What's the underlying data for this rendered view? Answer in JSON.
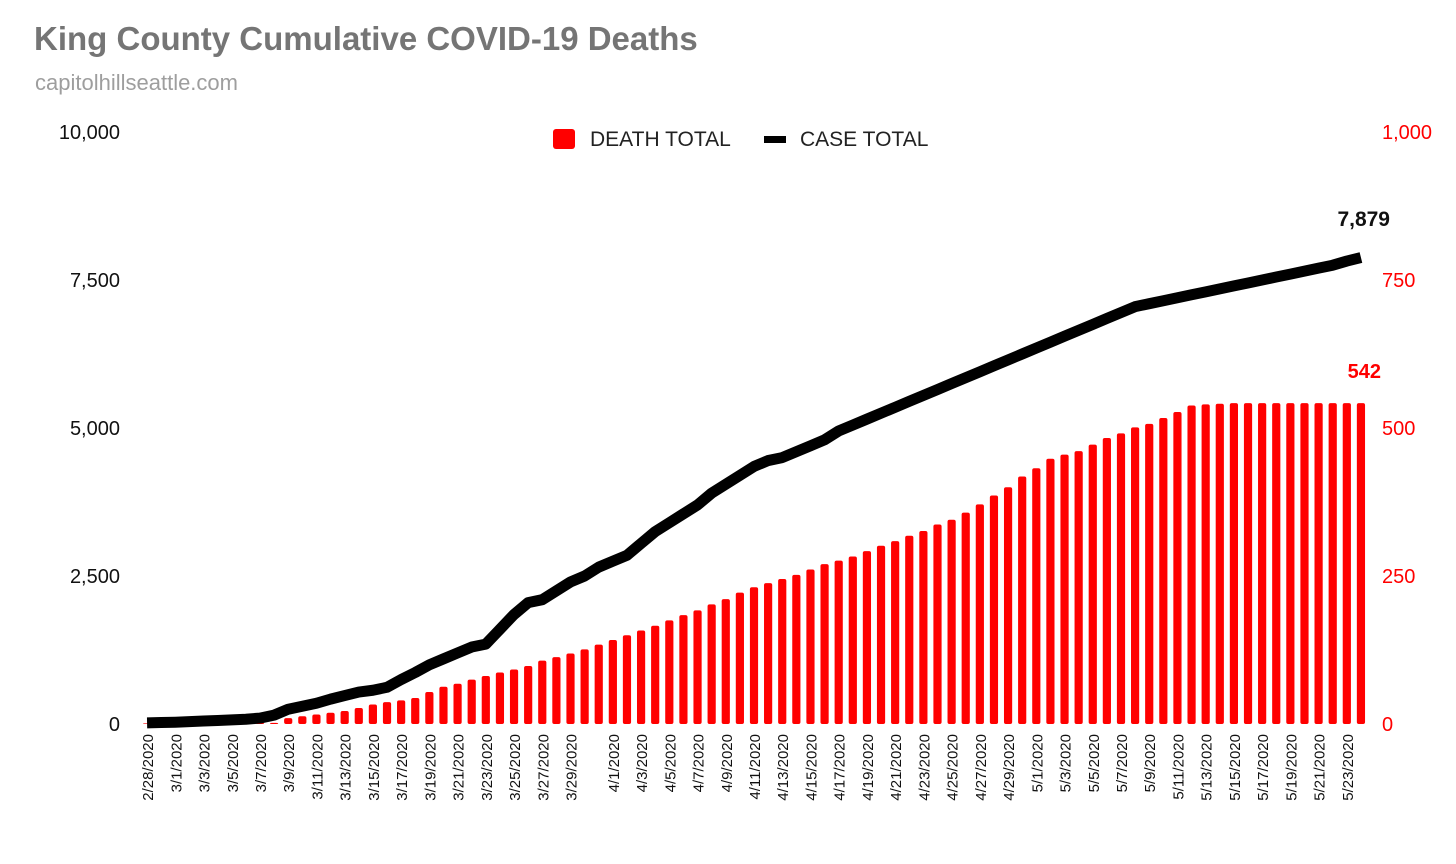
{
  "title": "King County Cumulative COVID-19 Deaths",
  "subtitle": "capitolhillseattle.com",
  "colors": {
    "deaths": "#ff0000",
    "cases": "#000000",
    "title": "#757575",
    "subtitle": "#9e9e9e"
  },
  "chart_data": {
    "type": "bar",
    "title": "King County Cumulative COVID-19 Deaths",
    "subtitle": "capitolhillseattle.com",
    "x": [
      "2/28/2020",
      "2/29/2020",
      "3/1/2020",
      "3/2/2020",
      "3/3/2020",
      "3/4/2020",
      "3/5/2020",
      "3/6/2020",
      "3/7/2020",
      "3/8/2020",
      "3/9/2020",
      "3/10/2020",
      "3/11/2020",
      "3/12/2020",
      "3/13/2020",
      "3/14/2020",
      "3/15/2020",
      "3/16/2020",
      "3/17/2020",
      "3/18/2020",
      "3/19/2020",
      "3/20/2020",
      "3/21/2020",
      "3/22/2020",
      "3/23/2020",
      "3/24/2020",
      "3/25/2020",
      "3/26/2020",
      "3/27/2020",
      "3/28/2020",
      "3/29/2020",
      "3/30/2020",
      "3/31/2020",
      "4/1/2020",
      "4/2/2020",
      "4/3/2020",
      "4/4/2020",
      "4/5/2020",
      "4/6/2020",
      "4/7/2020",
      "4/8/2020",
      "4/9/2020",
      "4/10/2020",
      "4/11/2020",
      "4/12/2020",
      "4/13/2020",
      "4/14/2020",
      "4/15/2020",
      "4/16/2020",
      "4/17/2020",
      "4/18/2020",
      "4/19/2020",
      "4/20/2020",
      "4/21/2020",
      "4/22/2020",
      "4/23/2020",
      "4/24/2020",
      "4/25/2020",
      "4/26/2020",
      "4/27/2020",
      "4/28/2020",
      "4/29/2020",
      "4/30/2020",
      "5/1/2020",
      "5/2/2020",
      "5/3/2020",
      "5/4/2020",
      "5/5/2020",
      "5/6/2020",
      "5/7/2020",
      "5/8/2020",
      "5/9/2020",
      "5/10/2020",
      "5/11/2020",
      "5/12/2020",
      "5/13/2020",
      "5/14/2020",
      "5/15/2020",
      "5/16/2020",
      "5/17/2020",
      "5/18/2020",
      "5/19/2020",
      "5/20/2020",
      "5/21/2020",
      "5/22/2020",
      "5/23/2020",
      "5/24/2020"
    ],
    "tick_labels": [
      "2/28/2020",
      "3/1/2020",
      "3/3/2020",
      "3/5/2020",
      "3/7/2020",
      "3/9/2020",
      "3/11/2020",
      "3/13/2020",
      "3/15/2020",
      "3/17/2020",
      "3/19/2020",
      "3/21/2020",
      "3/23/2020",
      "3/25/2020",
      "3/27/2020",
      "3/29/2020",
      "4/1/2020",
      "4/3/2020",
      "4/5/2020",
      "4/7/2020",
      "4/9/2020",
      "4/11/2020",
      "4/13/2020",
      "4/15/2020",
      "4/17/2020",
      "4/19/2020",
      "4/21/2020",
      "4/23/2020",
      "4/25/2020",
      "4/27/2020",
      "4/29/2020",
      "5/1/2020",
      "5/3/2020",
      "5/5/2020",
      "5/7/2020",
      "5/9/2020",
      "5/11/2020",
      "5/13/2020",
      "5/15/2020",
      "5/17/2020",
      "5/19/2020",
      "5/21/2020",
      "5/23/2020"
    ],
    "series": [
      {
        "name": "DEATH TOTAL",
        "axis": "right",
        "type": "bar",
        "color": "#ff0000",
        "values": [
          1,
          1,
          1,
          1,
          1,
          1,
          1,
          2,
          2,
          2,
          10,
          13,
          16,
          19,
          22,
          27,
          33,
          37,
          40,
          44,
          54,
          63,
          68,
          75,
          81,
          87,
          92,
          98,
          107,
          113,
          119,
          126,
          134,
          142,
          150,
          158,
          166,
          175,
          184,
          192,
          202,
          211,
          222,
          231,
          238,
          245,
          252,
          261,
          270,
          276,
          283,
          292,
          301,
          309,
          318,
          326,
          337,
          345,
          357,
          371,
          386,
          400,
          418,
          432,
          448,
          455,
          461,
          472,
          483,
          491,
          501,
          507,
          517,
          527,
          538,
          540,
          541,
          542,
          542,
          542,
          542,
          542,
          542,
          542,
          542,
          542,
          542
        ]
      },
      {
        "name": "CASE TOTAL",
        "axis": "left",
        "type": "line",
        "color": "#000000",
        "values": [
          20,
          25,
          30,
          40,
          50,
          60,
          70,
          80,
          100,
          150,
          250,
          300,
          350,
          420,
          480,
          540,
          570,
          620,
          750,
          870,
          1000,
          1100,
          1200,
          1300,
          1350,
          1600,
          1850,
          2050,
          2100,
          2250,
          2400,
          2500,
          2650,
          2750,
          2850,
          3050,
          3250,
          3400,
          3550,
          3700,
          3900,
          4050,
          4200,
          4350,
          4450,
          4500,
          4600,
          4700,
          4800,
          4950,
          5050,
          5150,
          5250,
          5350,
          5450,
          5550,
          5650,
          5750,
          5850,
          5950,
          6050,
          6150,
          6250,
          6350,
          6450,
          6550,
          6650,
          6750,
          6850,
          6950,
          7050,
          7100,
          7150,
          7200,
          7250,
          7300,
          7350,
          7400,
          7450,
          7500,
          7550,
          7600,
          7650,
          7700,
          7750,
          7820,
          7879
        ]
      }
    ],
    "annotations": {
      "last_case": "7,879",
      "last_death": "542"
    },
    "y_left": {
      "min": 0,
      "max": 10000,
      "ticks": [
        "0",
        "2,500",
        "5,000",
        "7,500",
        "10,000"
      ],
      "values": [
        0,
        2500,
        5000,
        7500,
        10000
      ]
    },
    "y_right": {
      "min": 0,
      "max": 1000,
      "ticks": [
        "0",
        "250",
        "500",
        "750",
        "1,000"
      ],
      "values": [
        0,
        250,
        500,
        750,
        1000
      ]
    },
    "legend": "top-center",
    "grid": false
  }
}
